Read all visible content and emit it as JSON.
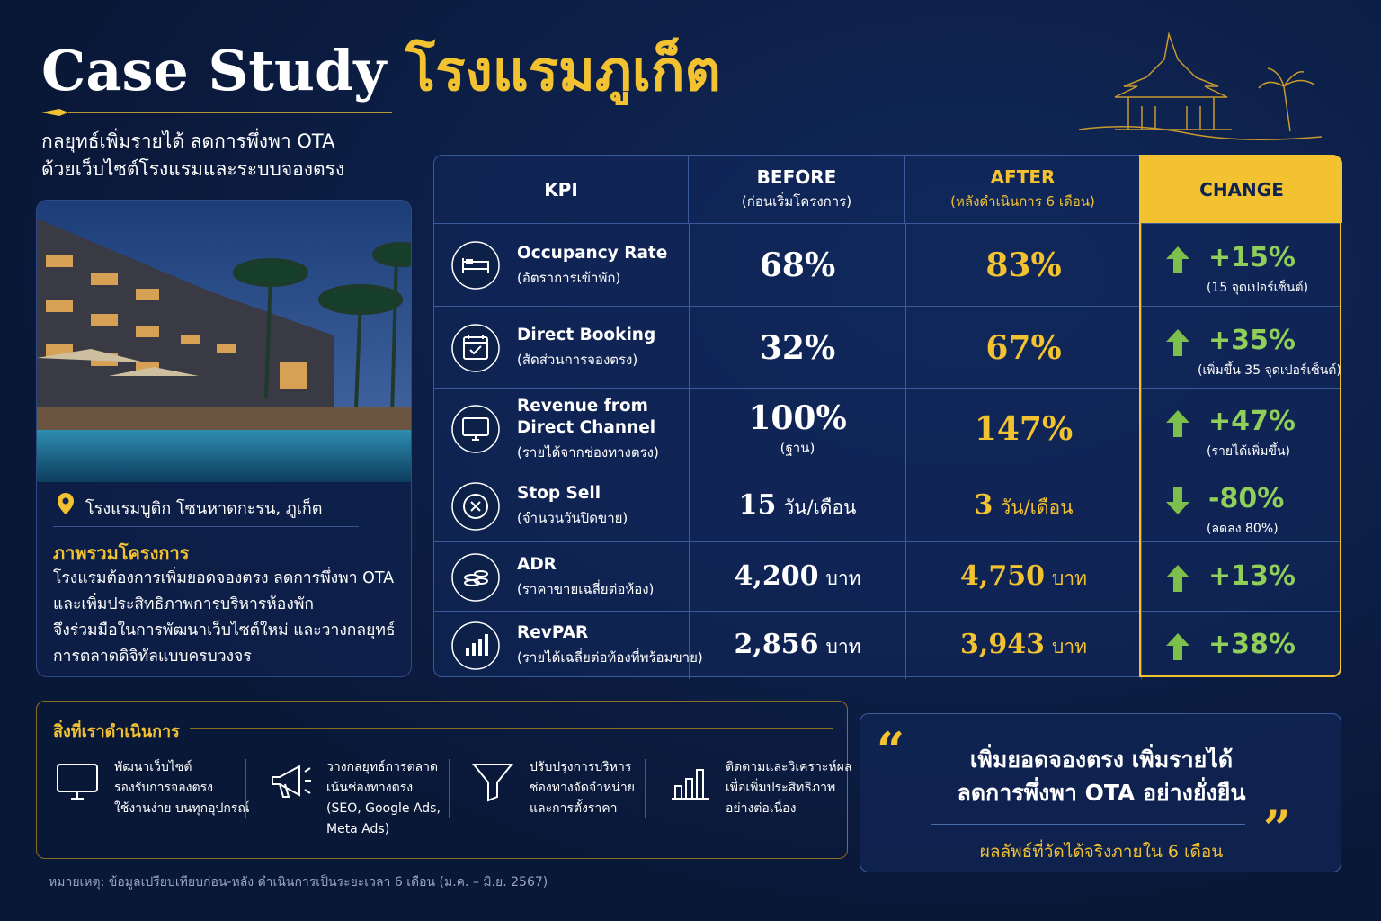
{
  "header": {
    "title_en": "Case Study",
    "title_th": "โรงแรมภูเก็ต",
    "subtitle": [
      "กลยุทธ์เพิ่มรายได้ ลดการพึ่งพา OTA",
      "ด้วยเว็บไซต์โรงแรมและระบบจองตรง"
    ]
  },
  "hotel": {
    "location": "โรงแรมบูติก โซนหาดกะรน, ภูเก็ต",
    "overview_title": "ภาพรวมโครงการ",
    "overview": [
      "โรงแรมต้องการเพิ่มยอดจองตรง ลดการพึ่งพา OTA",
      "และเพิ่มประสิทธิภาพการบริหารห้องพัก",
      "จึงร่วมมือในการพัฒนาเว็บไซต์ใหม่ และวางกลยุทธ์",
      "การตลาดดิจิทัลแบบครบวงจร"
    ]
  },
  "table": {
    "headers": [
      {
        "label": "KPI"
      },
      {
        "label": "BEFORE",
        "sub": "(ก่อนเริ่มโครงการ)"
      },
      {
        "label": "AFTER",
        "sub": "(หลังดำเนินการ 6 เดือน)"
      },
      {
        "label": "CHANGE"
      }
    ],
    "rows": [
      {
        "kpi": [
          "Occupancy Rate"
        ],
        "kpi_th": "(อัตราการเข้าพัก)",
        "before": "68%",
        "after": "83%",
        "change": "+15%",
        "change_note": "(15 จุดเปอร์เซ็นต์)",
        "direction": "up"
      },
      {
        "kpi": [
          "Direct Booking"
        ],
        "kpi_th": "(สัดส่วนการจองตรง)",
        "before": "32%",
        "after": "67%",
        "change": "+35%",
        "change_note": "(เพิ่มขึ้น 35 จุดเปอร์เซ็นต์)",
        "direction": "up"
      },
      {
        "kpi": [
          "Revenue from",
          "Direct Channel"
        ],
        "kpi_th": "(รายได้จากช่องทางตรง)",
        "before": "100%",
        "before_note": "(ฐาน)",
        "after": "147%",
        "change": "+47%",
        "change_note": "(รายได้เพิ่มขึ้น)",
        "direction": "up"
      },
      {
        "kpi": [
          "Stop Sell"
        ],
        "kpi_th": "(จำนวนวันปิดขาย)",
        "before": "15",
        "before_unit": "วัน/เดือน",
        "after": "3",
        "after_unit": "วัน/เดือน",
        "change": "-80%",
        "change_note": "(ลดลง 80%)",
        "direction": "down"
      },
      {
        "kpi": [
          "ADR"
        ],
        "kpi_th": "(ราคาขายเฉลี่ยต่อห้อง)",
        "before": "4,200",
        "before_unit": "บาท",
        "after": "4,750",
        "after_unit": "บาท",
        "change": "+13%",
        "direction": "up"
      },
      {
        "kpi": [
          "RevPAR"
        ],
        "kpi_th": "(รายได้เฉลี่ยต่อห้องที่พร้อมขาย)",
        "before": "2,856",
        "before_unit": "บาท",
        "after": "3,943",
        "after_unit": "บาท",
        "change": "+38%",
        "direction": "up"
      }
    ]
  },
  "actions": {
    "title": "สิ่งที่เราดำเนินการ",
    "items": [
      [
        "พัฒนาเว็บไซต์",
        "รองรับการจองตรง",
        "ใช้งานง่าย บนทุกอุปกรณ์"
      ],
      [
        "วางกลยุทธ์การตลาด",
        "เน้นช่องทางตรง",
        "(SEO, Google Ads,",
        "Meta Ads)"
      ],
      [
        "ปรับปรุงการบริหาร",
        "ช่องทางจัดจำหน่าย",
        "และการตั้งราคา"
      ],
      [
        "ติดตามและวิเคราะห์ผล",
        "เพื่อเพิ่มประสิทธิภาพ",
        "อย่างต่อเนื่อง"
      ]
    ]
  },
  "quote": {
    "open_mark": "“",
    "close_mark": "”",
    "lines": [
      "เพิ่มยอดจองตรง เพิ่มรายได้",
      "ลดการพึ่งพา OTA อย่างยั่งยืน"
    ],
    "footnote": "ผลลัพธ์ที่วัดได้จริงภายใน 6 เดือน"
  },
  "note": "หมายเหตุ: ข้อมูลเปรียบเทียบก่อน-หลัง ดำเนินการเป็นระยะเวลา 6 เดือน (ม.ค. – มิ.ย. 2567)"
}
